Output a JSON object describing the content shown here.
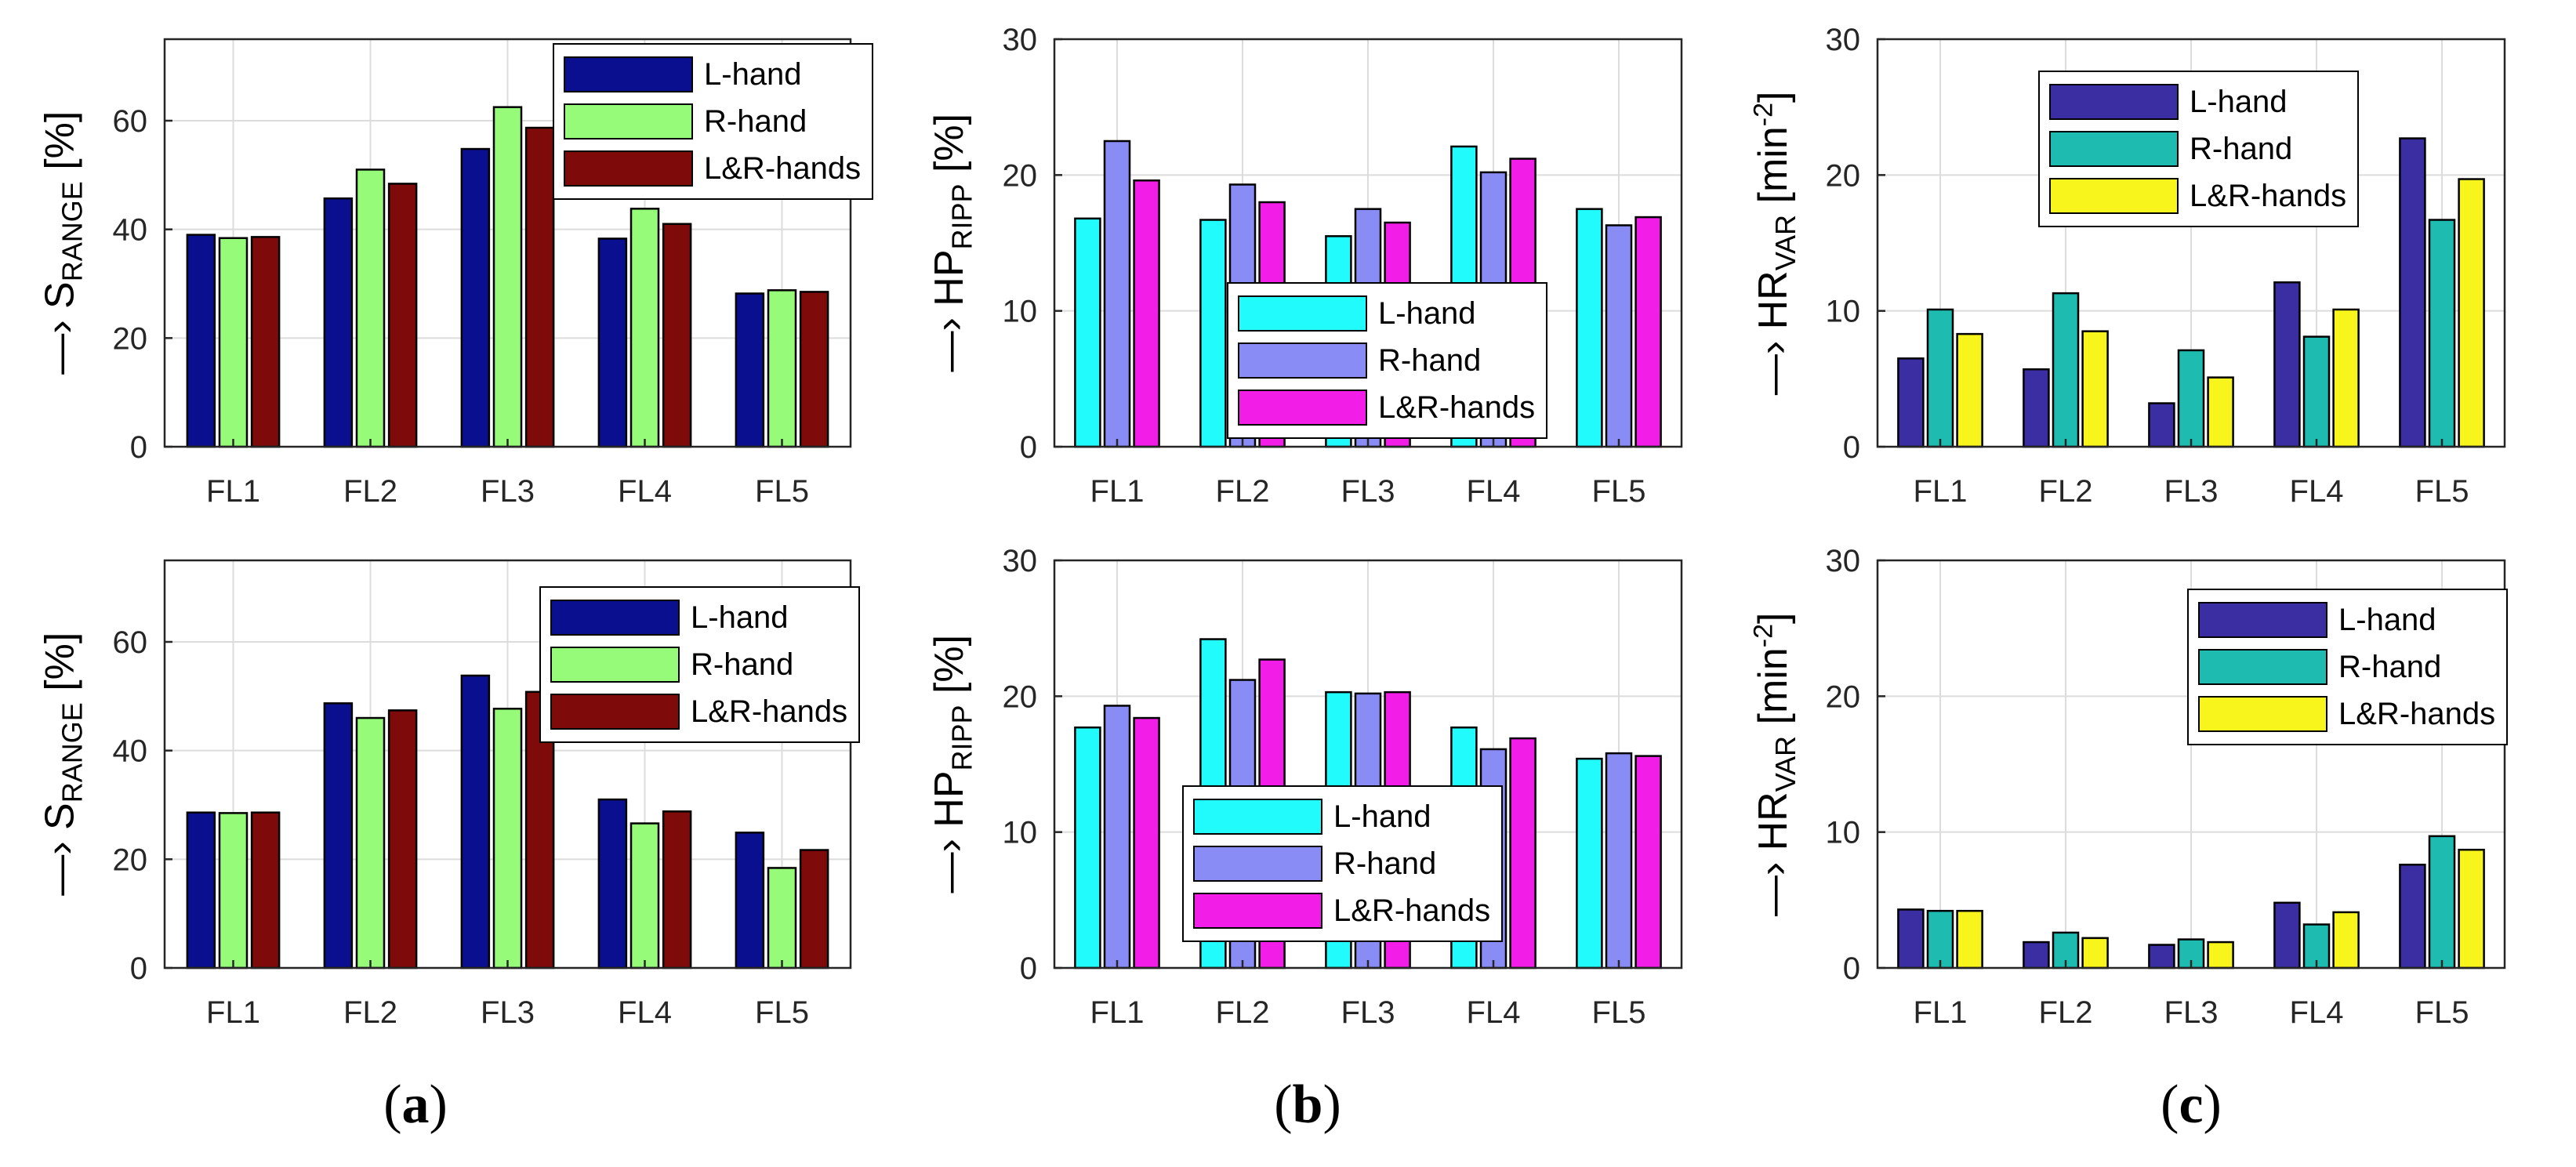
{
  "colors": {
    "sRange": [
      "#0a0f8f",
      "#96fb78",
      "#7e0a0a"
    ],
    "hpRipp": [
      "#22fbfb",
      "#8a8cf6",
      "#f21de6"
    ],
    "hrVar": [
      "#3b2da2",
      "#1ebcb0",
      "#f8f51d"
    ]
  },
  "captions": {
    "a": {
      "open": "(",
      "letter": "a",
      "close": ")"
    },
    "b": {
      "open": "(",
      "letter": "b",
      "close": ")"
    },
    "c": {
      "open": "(",
      "letter": "c",
      "close": ")"
    }
  },
  "ylabels": {
    "sRange": {
      "prefix": "—› S",
      "sub": "RANGE",
      "suffix": " [%]"
    },
    "hpRipp": {
      "prefix": "—› HP",
      "sub": "RIPP",
      "suffix": " [%]"
    },
    "hrVar": {
      "prefix": "—› HR",
      "sub": "VAR",
      "suffix": " [min",
      "sup": "-2",
      "close": "]"
    }
  },
  "chart_data": [
    {
      "id": "a-top",
      "type": "bar",
      "palette": "sRange",
      "categories": [
        "FL1",
        "FL2",
        "FL3",
        "FL4",
        "FL5"
      ],
      "series": [
        {
          "name": "L-hand",
          "values": [
            39,
            45.7,
            54.8,
            38.3,
            28.2
          ]
        },
        {
          "name": "R-hand",
          "values": [
            38.4,
            51,
            62.5,
            43.8,
            28.8
          ]
        },
        {
          "name": "L&R-hands",
          "values": [
            38.6,
            48.4,
            58.7,
            41,
            28.5
          ]
        }
      ],
      "ylim": [
        0,
        75
      ],
      "yticks": [
        0,
        20,
        40,
        60
      ],
      "grid": true,
      "legend_position": "top-right"
    },
    {
      "id": "b-top",
      "type": "bar",
      "palette": "hpRipp",
      "categories": [
        "FL1",
        "FL2",
        "FL3",
        "FL4",
        "FL5"
      ],
      "series": [
        {
          "name": "L-hand",
          "values": [
            16.8,
            16.7,
            15.5,
            22.1,
            17.5
          ]
        },
        {
          "name": "R-hand",
          "values": [
            22.5,
            19.3,
            17.5,
            20.2,
            16.3
          ]
        },
        {
          "name": "L&R-hands",
          "values": [
            19.6,
            18,
            16.5,
            21.2,
            16.9
          ]
        }
      ],
      "ylim": [
        0,
        30
      ],
      "yticks": [
        0,
        10,
        20,
        30
      ],
      "grid": true,
      "legend_position": "center-right"
    },
    {
      "id": "c-top",
      "type": "bar",
      "palette": "hrVar",
      "categories": [
        "FL1",
        "FL2",
        "FL3",
        "FL4",
        "FL5"
      ],
      "series": [
        {
          "name": "L-hand",
          "values": [
            6.5,
            5.7,
            3.2,
            12.1,
            22.7
          ]
        },
        {
          "name": "R-hand",
          "values": [
            10.1,
            11.3,
            7.1,
            8.1,
            16.7
          ]
        },
        {
          "name": "L&R-hands",
          "values": [
            8.3,
            8.5,
            5.1,
            10.1,
            19.7
          ]
        }
      ],
      "ylim": [
        0,
        30
      ],
      "yticks": [
        0,
        10,
        20,
        30
      ],
      "grid": true,
      "legend_position": "top-center"
    },
    {
      "id": "a-bottom",
      "type": "bar",
      "palette": "sRange",
      "categories": [
        "FL1",
        "FL2",
        "FL3",
        "FL4",
        "FL5"
      ],
      "series": [
        {
          "name": "L-hand",
          "values": [
            28.6,
            48.7,
            53.8,
            31,
            24.9
          ]
        },
        {
          "name": "R-hand",
          "values": [
            28.5,
            46,
            47.7,
            26.6,
            18.4
          ]
        },
        {
          "name": "L&R-hands",
          "values": [
            28.6,
            47.4,
            50.8,
            28.8,
            21.7
          ]
        }
      ],
      "ylim": [
        0,
        75
      ],
      "yticks": [
        0,
        20,
        40,
        60
      ],
      "grid": true,
      "legend_position": "top-right"
    },
    {
      "id": "b-bottom",
      "type": "bar",
      "palette": "hpRipp",
      "categories": [
        "FL1",
        "FL2",
        "FL3",
        "FL4",
        "FL5"
      ],
      "series": [
        {
          "name": "L-hand",
          "values": [
            17.7,
            24.2,
            20.3,
            17.7,
            15.4
          ]
        },
        {
          "name": "R-hand",
          "values": [
            19.3,
            21.2,
            20.2,
            16.1,
            15.8
          ]
        },
        {
          "name": "L&R-hands",
          "values": [
            18.4,
            22.7,
            20.3,
            16.9,
            15.6
          ]
        }
      ],
      "ylim": [
        0,
        30
      ],
      "yticks": [
        0,
        10,
        20,
        30
      ],
      "grid": true,
      "legend_position": "bottom-center"
    },
    {
      "id": "c-bottom",
      "type": "bar",
      "palette": "hrVar",
      "categories": [
        "FL1",
        "FL2",
        "FL3",
        "FL4",
        "FL5"
      ],
      "series": [
        {
          "name": "L-hand",
          "values": [
            4.3,
            1.9,
            1.7,
            4.8,
            7.6
          ]
        },
        {
          "name": "R-hand",
          "values": [
            4.2,
            2.6,
            2.1,
            3.2,
            9.7
          ]
        },
        {
          "name": "L&R-hands",
          "values": [
            4.2,
            2.2,
            1.9,
            4.1,
            8.7
          ]
        }
      ],
      "ylim": [
        0,
        30
      ],
      "yticks": [
        0,
        10,
        20,
        30
      ],
      "grid": true,
      "legend_position": "top-right"
    }
  ]
}
